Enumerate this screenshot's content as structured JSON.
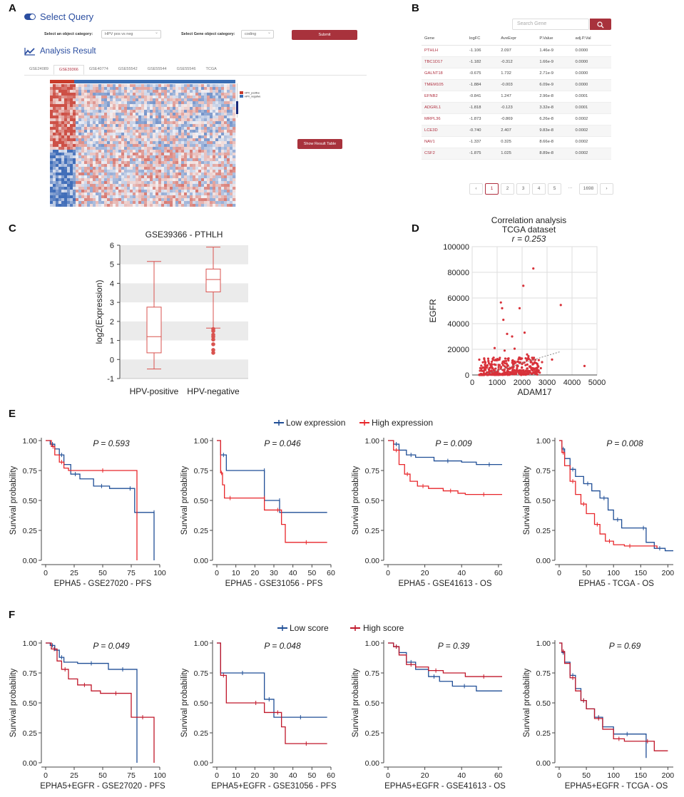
{
  "panel_labels": {
    "a": "A",
    "b": "B",
    "c": "C",
    "d": "D",
    "e": "E",
    "f": "F"
  },
  "panel_a": {
    "select_query": "Select Query",
    "object_category_label": "Select an object category:",
    "object_category_value": "HPV pos vs neg",
    "gene_category_label": "Select Gene object category:",
    "gene_category_value": "coding",
    "submit": "Submit",
    "analysis_result": "Analysis Result",
    "tabs": [
      "GSE24089",
      "GSE39366",
      "GSE40774",
      "GSE55542",
      "GSE55544",
      "GSE55546",
      "TCGA"
    ],
    "active_tab": 1,
    "show_result_table": "Show Result Table",
    "legend_items": [
      "HPV_positive",
      "HPV_negative"
    ]
  },
  "panel_b": {
    "search_placeholder": "Search Gene",
    "search_icon": "search-icon",
    "headers": [
      "Gene",
      "logFC",
      "AveExpr",
      "P.Value",
      "adj.P.Val"
    ],
    "rows": [
      [
        "PTHLH",
        "-1.106",
        "2.097",
        "1.46e-9",
        "0.0000"
      ],
      [
        "TBC1D17",
        "-1.182",
        "-0.312",
        "1.66e-9",
        "0.0000"
      ],
      [
        "GALNT18",
        "-0.675",
        "1.732",
        "2.71e-9",
        "0.0000"
      ],
      [
        "TMEM105",
        "-1.884",
        "-0.003",
        "6.09e-9",
        "0.0000"
      ],
      [
        "EFNB2",
        "-0.841",
        "1.247",
        "2.96e-8",
        "0.0001"
      ],
      [
        "ADGRL1",
        "-1.818",
        "-0.123",
        "3.32e-8",
        "0.0001"
      ],
      [
        "MRPL36",
        "-1.873",
        "-0.869",
        "6.26e-8",
        "0.0002"
      ],
      [
        "LCE3D",
        "-0.740",
        "2.407",
        "9.83e-8",
        "0.0002"
      ],
      [
        "NAV1",
        "-1.337",
        "0.325",
        "8.66e-8",
        "0.0002"
      ],
      [
        "CSF2",
        "-1.875",
        "1.025",
        "8.89e-8",
        "0.0002"
      ]
    ],
    "pages": [
      "‹",
      "1",
      "2",
      "3",
      "4",
      "5",
      "···",
      "1698",
      "›"
    ]
  },
  "panel_c": {
    "title": "GSE39366 - PTHLH",
    "ylabel": "log2(Expression)",
    "groups": [
      "HPV-positive",
      "HPV-negative"
    ]
  },
  "panel_d": {
    "title1": "Correlation analysis",
    "title2": "TCGA dataset",
    "r_label": "r = 0.253",
    "xlabel": "ADAM17",
    "ylabel": "EGFR"
  },
  "panel_e": {
    "legend": [
      "Low expression",
      "High expression"
    ],
    "plots": [
      {
        "p": "P = 0.593",
        "xlabel": "EPHA5 - GSE27020 - PFS"
      },
      {
        "p": "P = 0.046",
        "xlabel": "EPHA5 - GSE31056 - PFS"
      },
      {
        "p": "P = 0.009",
        "xlabel": "EPHA5 - GSE41613 - OS"
      },
      {
        "p": "P = 0.008",
        "xlabel": "EPHA5 - TCGA - OS"
      }
    ],
    "ylabel": "Survival probability"
  },
  "panel_f": {
    "legend": [
      "Low score",
      "High score"
    ],
    "plots": [
      {
        "p": "P = 0.049",
        "xlabel": "EPHA5+EGFR - GSE27020 - PFS"
      },
      {
        "p": "P = 0.048",
        "xlabel": "EPHA5+EGFR - GSE31056 - PFS"
      },
      {
        "p": "P = 0.39",
        "xlabel": "EPHA5+EGFR - GSE41613 - OS"
      },
      {
        "p": "P = 0.69",
        "xlabel": "EPHA5+EGFR - TCGA - OS"
      }
    ],
    "ylabel": "Survival probability"
  },
  "colors": {
    "low": "#1f4e96",
    "high": "#e8262a",
    "high_f": "#c0172a",
    "brand": "#a8323c",
    "link": "#2b4ea0"
  },
  "chart_data": [
    {
      "type": "box",
      "id": "C",
      "title": "GSE39366 - PTHLH",
      "categories": [
        "HPV-positive",
        "HPV-negative"
      ],
      "boxes": [
        {
          "min": -0.5,
          "q1": 0.35,
          "median": 1.2,
          "q3": 2.75,
          "max": 5.15,
          "outliers": []
        },
        {
          "min": 1.65,
          "q1": 3.55,
          "median": 4.2,
          "q3": 4.75,
          "max": 5.9,
          "outliers": [
            1.5,
            1.3,
            1.05,
            0.8,
            0.5,
            0.35,
            1.6,
            1.2
          ]
        }
      ],
      "ylim": [
        -1,
        6
      ],
      "yticks": [
        -1,
        0,
        1,
        2,
        3,
        4,
        5,
        6
      ]
    },
    {
      "type": "scatter",
      "id": "D",
      "xlabel": "ADAM17",
      "ylabel": "EGFR",
      "xlim": [
        0,
        5000
      ],
      "ylim": [
        0,
        100000
      ],
      "xticks": [
        0,
        1000,
        2000,
        3000,
        4000,
        5000
      ],
      "yticks": [
        0,
        20000,
        40000,
        60000,
        80000,
        100000
      ],
      "r": 0.253,
      "outliers": [
        [
          2450,
          83000
        ],
        [
          2050,
          69500
        ],
        [
          3550,
          54500
        ],
        [
          1150,
          56500
        ],
        [
          1200,
          52000
        ],
        [
          1900,
          52000
        ],
        [
          1250,
          43000
        ],
        [
          2100,
          33000
        ],
        [
          1600,
          30000
        ],
        [
          1400,
          32000
        ],
        [
          4500,
          7000
        ],
        [
          3200,
          12000
        ],
        [
          2800,
          10000
        ],
        [
          900,
          21000
        ],
        [
          1300,
          19000
        ],
        [
          1700,
          20500
        ],
        [
          2200,
          16000
        ]
      ],
      "trend": [
        [
          600,
          1000
        ],
        [
          3500,
          18000
        ]
      ]
    },
    {
      "type": "km",
      "id": "E",
      "plots": [
        {
          "xticks": [
            0,
            25,
            50,
            75,
            100
          ],
          "xlim": [
            0,
            100
          ],
          "low": [
            [
              0,
              1
            ],
            [
              4,
              0.97
            ],
            [
              8,
              0.93
            ],
            [
              12,
              0.88
            ],
            [
              16,
              0.8
            ],
            [
              22,
              0.72
            ],
            [
              30,
              0.68
            ],
            [
              42,
              0.62
            ],
            [
              56,
              0.6
            ],
            [
              70,
              0.6
            ],
            [
              78,
              0.4
            ],
            [
              95,
              0.4
            ],
            [
              95,
              0
            ]
          ],
          "high": [
            [
              0,
              1
            ],
            [
              5,
              0.95
            ],
            [
              8,
              0.88
            ],
            [
              12,
              0.82
            ],
            [
              16,
              0.77
            ],
            [
              20,
              0.75
            ],
            [
              80,
              0.75
            ],
            [
              80,
              0
            ]
          ]
        },
        {
          "xticks": [
            0,
            10,
            20,
            30,
            40,
            50,
            60
          ],
          "xlim": [
            0,
            60
          ],
          "low": [
            [
              0,
              1
            ],
            [
              2,
              0.88
            ],
            [
              5,
              0.75
            ],
            [
              25,
              0.75
            ],
            [
              25,
              0.5
            ],
            [
              33,
              0.5
            ],
            [
              33,
              0.4
            ],
            [
              58,
              0.4
            ]
          ],
          "high": [
            [
              0,
              1
            ],
            [
              2,
              0.73
            ],
            [
              3,
              0.63
            ],
            [
              4,
              0.52
            ],
            [
              10,
              0.52
            ],
            [
              25,
              0.52
            ],
            [
              25,
              0.42
            ],
            [
              30,
              0.42
            ],
            [
              34,
              0.3
            ],
            [
              36,
              0.15
            ],
            [
              58,
              0.15
            ]
          ]
        },
        {
          "xticks": [
            0,
            20,
            40,
            60
          ],
          "xlim": [
            0,
            62
          ],
          "low": [
            [
              0,
              1
            ],
            [
              3,
              0.97
            ],
            [
              6,
              0.92
            ],
            [
              10,
              0.88
            ],
            [
              15,
              0.86
            ],
            [
              25,
              0.83
            ],
            [
              40,
              0.82
            ],
            [
              48,
              0.8
            ],
            [
              62,
              0.8
            ]
          ],
          "high": [
            [
              0,
              1
            ],
            [
              3,
              0.92
            ],
            [
              6,
              0.8
            ],
            [
              9,
              0.72
            ],
            [
              12,
              0.66
            ],
            [
              16,
              0.62
            ],
            [
              22,
              0.6
            ],
            [
              30,
              0.58
            ],
            [
              38,
              0.56
            ],
            [
              42,
              0.55
            ],
            [
              62,
              0.55
            ]
          ]
        },
        {
          "xticks": [
            0,
            50,
            100,
            150,
            200
          ],
          "xlim": [
            0,
            210
          ],
          "low": [
            [
              0,
              1
            ],
            [
              5,
              0.93
            ],
            [
              10,
              0.85
            ],
            [
              20,
              0.76
            ],
            [
              30,
              0.7
            ],
            [
              45,
              0.64
            ],
            [
              60,
              0.58
            ],
            [
              75,
              0.52
            ],
            [
              90,
              0.42
            ],
            [
              100,
              0.34
            ],
            [
              115,
              0.27
            ],
            [
              150,
              0.27
            ],
            [
              160,
              0.15
            ],
            [
              175,
              0.1
            ],
            [
              195,
              0.08
            ],
            [
              210,
              0.08
            ]
          ],
          "high": [
            [
              0,
              1
            ],
            [
              5,
              0.9
            ],
            [
              10,
              0.79
            ],
            [
              20,
              0.66
            ],
            [
              30,
              0.55
            ],
            [
              40,
              0.47
            ],
            [
              50,
              0.39
            ],
            [
              65,
              0.3
            ],
            [
              75,
              0.22
            ],
            [
              85,
              0.16
            ],
            [
              100,
              0.13
            ],
            [
              120,
              0.12
            ],
            [
              140,
              0.12
            ],
            [
              180,
              0.1
            ]
          ]
        }
      ]
    },
    {
      "type": "km",
      "id": "F",
      "plots": [
        {
          "xticks": [
            0,
            25,
            50,
            75,
            100
          ],
          "xlim": [
            0,
            100
          ],
          "low": [
            [
              0,
              1
            ],
            [
              4,
              0.98
            ],
            [
              8,
              0.94
            ],
            [
              12,
              0.88
            ],
            [
              16,
              0.84
            ],
            [
              28,
              0.83
            ],
            [
              52,
              0.83
            ],
            [
              55,
              0.78
            ],
            [
              80,
              0.78
            ],
            [
              80,
              0
            ]
          ],
          "high": [
            [
              0,
              1
            ],
            [
              5,
              0.95
            ],
            [
              10,
              0.85
            ],
            [
              14,
              0.78
            ],
            [
              20,
              0.7
            ],
            [
              28,
              0.65
            ],
            [
              40,
              0.6
            ],
            [
              48,
              0.58
            ],
            [
              75,
              0.58
            ],
            [
              75,
              0.38
            ],
            [
              95,
              0.38
            ],
            [
              95,
              0
            ]
          ]
        },
        {
          "xticks": [
            0,
            10,
            20,
            30,
            40,
            50,
            60
          ],
          "xlim": [
            0,
            60
          ],
          "low": [
            [
              0,
              1
            ],
            [
              2,
              0.75
            ],
            [
              25,
              0.75
            ],
            [
              25,
              0.53
            ],
            [
              30,
              0.53
            ],
            [
              30,
              0.38
            ],
            [
              58,
              0.38
            ]
          ],
          "high": [
            [
              0,
              1
            ],
            [
              2,
              0.73
            ],
            [
              5,
              0.5
            ],
            [
              16,
              0.5
            ],
            [
              25,
              0.42
            ],
            [
              30,
              0.42
            ],
            [
              34,
              0.3
            ],
            [
              36,
              0.16
            ],
            [
              58,
              0.16
            ]
          ]
        },
        {
          "xticks": [
            0,
            20,
            40,
            60
          ],
          "xlim": [
            0,
            62
          ],
          "low": [
            [
              0,
              1
            ],
            [
              3,
              0.97
            ],
            [
              6,
              0.92
            ],
            [
              10,
              0.84
            ],
            [
              15,
              0.78
            ],
            [
              22,
              0.72
            ],
            [
              28,
              0.68
            ],
            [
              35,
              0.64
            ],
            [
              48,
              0.6
            ],
            [
              62,
              0.6
            ]
          ],
          "high": [
            [
              0,
              1
            ],
            [
              3,
              0.97
            ],
            [
              6,
              0.9
            ],
            [
              10,
              0.82
            ],
            [
              15,
              0.8
            ],
            [
              22,
              0.77
            ],
            [
              30,
              0.75
            ],
            [
              42,
              0.72
            ],
            [
              62,
              0.72
            ]
          ]
        },
        {
          "xticks": [
            0,
            50,
            100,
            150,
            200
          ],
          "xlim": [
            0,
            210
          ],
          "low": [
            [
              0,
              1
            ],
            [
              5,
              0.92
            ],
            [
              10,
              0.84
            ],
            [
              20,
              0.73
            ],
            [
              30,
              0.62
            ],
            [
              40,
              0.52
            ],
            [
              50,
              0.45
            ],
            [
              65,
              0.38
            ],
            [
              80,
              0.3
            ],
            [
              100,
              0.24
            ],
            [
              150,
              0.24
            ],
            [
              160,
              0.04
            ]
          ],
          "high": [
            [
              0,
              1
            ],
            [
              5,
              0.93
            ],
            [
              10,
              0.83
            ],
            [
              20,
              0.71
            ],
            [
              30,
              0.6
            ],
            [
              40,
              0.52
            ],
            [
              50,
              0.45
            ],
            [
              65,
              0.37
            ],
            [
              80,
              0.28
            ],
            [
              100,
              0.2
            ],
            [
              120,
              0.18
            ],
            [
              150,
              0.18
            ],
            [
              175,
              0.1
            ],
            [
              200,
              0.1
            ]
          ]
        }
      ]
    }
  ]
}
